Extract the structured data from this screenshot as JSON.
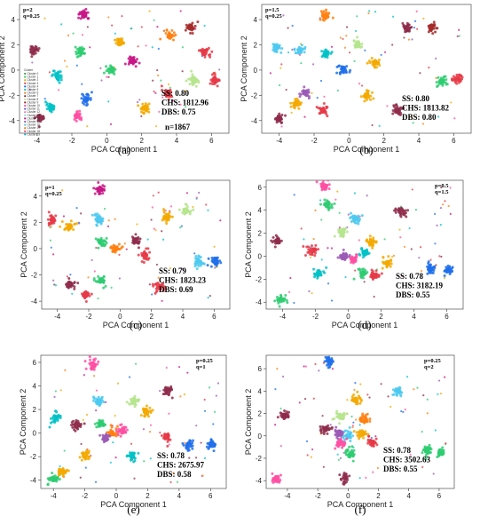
{
  "figure": {
    "cluster_colors": [
      "#4b9a4b",
      "#2ecc71",
      "#f4a900",
      "#e63946",
      "#1f6feb",
      "#00c2c7",
      "#ff7f0e",
      "#8e2b4a",
      "#b5e48c",
      "#a52a2a",
      "#ff4fa3",
      "#6a5acd",
      "#e377c2",
      "#7fdbda",
      "#c71585",
      "#9b59b6",
      "#4cc9f0",
      "#f77f00",
      "#ff3b6b",
      "#00bcd4"
    ],
    "scatter_colors": [
      "#e63946",
      "#f4a900",
      "#1f6feb",
      "#00c2c7",
      "#8e2b4a",
      "#2ecc71",
      "#ff4fa3",
      "#9b59b6",
      "#ff7f0e",
      "#c71585"
    ]
  },
  "chart_data": [
    {
      "panel_id": "a",
      "type": "scatter",
      "panel_label": "(a)",
      "params": [
        "p=2",
        "q=0.25"
      ],
      "metrics": [
        "SS: 0.80",
        "CHS: 1812.96",
        "DBS: 0.75"
      ],
      "note": "n=1867",
      "xlabel": "PCA Component 1",
      "ylabel": "PCA Component 2",
      "xlim": [
        -5,
        7
      ],
      "ylim": [
        -5,
        5.2
      ],
      "xticks": [
        -4,
        -2,
        0,
        2,
        4,
        6
      ],
      "yticks": [
        -4,
        -2,
        0,
        2,
        4
      ],
      "legend": {
        "title": "Cluster",
        "entries": [
          "Cluster 0",
          "Cluster 1",
          "Cluster 2",
          "Cluster 3",
          "Cluster 4",
          "Cluster 5",
          "Cluster 6",
          "Cluster 7",
          "Cluster 8",
          "Cluster 9",
          "Cluster 10",
          "Cluster 11",
          "Cluster 12",
          "Cluster 13",
          "Cluster 14",
          "Cluster 15",
          "Cluster 16",
          "Cluster 17",
          "Cluster 18",
          "Cluster 19"
        ]
      },
      "clusters": [
        {
          "x": -1.3,
          "y": 4.4,
          "color": "#c71585"
        },
        {
          "x": -4.2,
          "y": 1.6,
          "color": "#8e2b4a"
        },
        {
          "x": -1.5,
          "y": 1.5,
          "color": "#2ecc71"
        },
        {
          "x": 0.2,
          "y": 0.0,
          "color": "#2ecc71"
        },
        {
          "x": 0.8,
          "y": 2.2,
          "color": "#f4a900"
        },
        {
          "x": 3.6,
          "y": 2.7,
          "color": "#ff7f0e"
        },
        {
          "x": 4.8,
          "y": 3.4,
          "color": "#a52a2a"
        },
        {
          "x": 5.6,
          "y": 1.4,
          "color": "#e63946"
        },
        {
          "x": 5.0,
          "y": -0.8,
          "color": "#b5e48c"
        },
        {
          "x": 6.2,
          "y": -0.8,
          "color": "#e63946"
        },
        {
          "x": -1.2,
          "y": -2.3,
          "color": "#1f6feb"
        },
        {
          "x": -3.2,
          "y": -2.9,
          "color": "#00c2c7"
        },
        {
          "x": -3.8,
          "y": -3.8,
          "color": "#8e2b4a"
        },
        {
          "x": -1.7,
          "y": -3.6,
          "color": "#ff4fa3"
        },
        {
          "x": 2.2,
          "y": -3.0,
          "color": "#f4a900"
        },
        {
          "x": 3.5,
          "y": -1.8,
          "color": "#e63946"
        },
        {
          "x": 1.5,
          "y": 0.7,
          "color": "#c71585"
        },
        {
          "x": -2.8,
          "y": -0.5,
          "color": "#00c2c7"
        }
      ]
    },
    {
      "panel_id": "b",
      "type": "scatter",
      "panel_label": "(b)",
      "params": [
        "p=1.5",
        "q=0.25"
      ],
      "metrics": [
        "SS: 0.80",
        "CHS: 1813.82",
        "DBS: 0.80"
      ],
      "xlabel": "PCA Component 1",
      "ylabel": "PCA Component 2",
      "xlim": [
        -5,
        7
      ],
      "ylim": [
        -5,
        5.2
      ],
      "xticks": [
        -4,
        -2,
        0,
        2,
        4,
        6
      ],
      "yticks": [
        -4,
        -2,
        0,
        2,
        4
      ],
      "clusters": [
        {
          "x": -1.4,
          "y": 4.3,
          "color": "#ff7f0e"
        },
        {
          "x": -4.2,
          "y": 1.8,
          "color": "#4cc9f0"
        },
        {
          "x": -2.8,
          "y": 1.6,
          "color": "#4cc9f0"
        },
        {
          "x": -1.3,
          "y": 1.3,
          "color": "#00c2c7"
        },
        {
          "x": 0.5,
          "y": 2.0,
          "color": "#b5e48c"
        },
        {
          "x": 1.5,
          "y": 0.6,
          "color": "#f4a900"
        },
        {
          "x": -0.3,
          "y": 0.0,
          "color": "#1f6feb"
        },
        {
          "x": 3.3,
          "y": 3.3,
          "color": "#8e2b4a"
        },
        {
          "x": 4.7,
          "y": 3.4,
          "color": "#a52a2a"
        },
        {
          "x": 5.3,
          "y": -0.9,
          "color": "#2ecc71"
        },
        {
          "x": 6.2,
          "y": -0.7,
          "color": "#e63946"
        },
        {
          "x": -2.5,
          "y": -1.8,
          "color": "#9b59b6"
        },
        {
          "x": -3.0,
          "y": -2.6,
          "color": "#f4a900"
        },
        {
          "x": -4.0,
          "y": -3.8,
          "color": "#8e2b4a"
        },
        {
          "x": -1.5,
          "y": -3.2,
          "color": "#e63946"
        },
        {
          "x": 2.8,
          "y": -3.2,
          "color": "#8e2b4a"
        },
        {
          "x": 1.0,
          "y": -2.0,
          "color": "#f4a900"
        }
      ]
    },
    {
      "panel_id": "c",
      "type": "scatter",
      "panel_label": "(c)",
      "params": [
        "p=1",
        "q=0.25"
      ],
      "metrics": [
        "SS: 0.79",
        "CHS: 1823.23",
        "DBS: 0.69"
      ],
      "xlabel": "PCA Component 1",
      "ylabel": "PCA Component 2",
      "xlim": [
        -5,
        7
      ],
      "ylim": [
        -4.6,
        5.2
      ],
      "xticks": [
        -4,
        -2,
        0,
        2,
        4,
        6
      ],
      "yticks": [
        -4,
        -2,
        0,
        2,
        4
      ],
      "clusters": [
        {
          "x": -1.3,
          "y": 4.5,
          "color": "#c71585"
        },
        {
          "x": -4.3,
          "y": 2.2,
          "color": "#e63946"
        },
        {
          "x": -3.2,
          "y": 1.7,
          "color": "#f4a900"
        },
        {
          "x": -1.4,
          "y": 2.2,
          "color": "#4cc9f0"
        },
        {
          "x": 3.0,
          "y": 2.4,
          "color": "#f4a900"
        },
        {
          "x": 4.2,
          "y": 2.9,
          "color": "#b5e48c"
        },
        {
          "x": -1.2,
          "y": 0.5,
          "color": "#2ecc71"
        },
        {
          "x": -0.3,
          "y": 0.0,
          "color": "#ff7f0e"
        },
        {
          "x": 1.0,
          "y": 0.6,
          "color": "#8e2b4a"
        },
        {
          "x": 1.6,
          "y": -0.5,
          "color": "#e63946"
        },
        {
          "x": -1.2,
          "y": -2.4,
          "color": "#2ecc71"
        },
        {
          "x": -3.2,
          "y": -2.7,
          "color": "#8e2b4a"
        },
        {
          "x": -2.2,
          "y": -3.5,
          "color": "#e63946"
        },
        {
          "x": 2.5,
          "y": -2.9,
          "color": "#e63946"
        },
        {
          "x": 5.0,
          "y": -1.0,
          "color": "#4cc9f0"
        },
        {
          "x": 6.1,
          "y": -1.0,
          "color": "#1f6feb"
        }
      ]
    },
    {
      "panel_id": "d",
      "type": "scatter",
      "panel_label": "(d)",
      "params": [
        "p=0.5",
        "q=1.5"
      ],
      "metrics": [
        "SS: 0.78",
        "CHS: 3182.19",
        "DBS: 0.55"
      ],
      "xlabel": "PCA Component 1",
      "ylabel": "PCA Component 2",
      "xlim": [
        -5,
        7
      ],
      "ylim": [
        -4.6,
        6.6
      ],
      "xticks": [
        -4,
        -2,
        0,
        2,
        4,
        6
      ],
      "yticks": [
        -4,
        -2,
        0,
        2,
        4,
        6
      ],
      "clusters": [
        {
          "x": -1.5,
          "y": 6.1,
          "color": "#ff4fa3"
        },
        {
          "x": -1.3,
          "y": 4.5,
          "color": "#2ecc71"
        },
        {
          "x": 0.4,
          "y": 3.3,
          "color": "#4cc9f0"
        },
        {
          "x": 3.2,
          "y": 3.9,
          "color": "#8e2b4a"
        },
        {
          "x": -0.4,
          "y": 2.1,
          "color": "#b5e48c"
        },
        {
          "x": -4.3,
          "y": 1.3,
          "color": "#8e2b4a"
        },
        {
          "x": -2.2,
          "y": 0.5,
          "color": "#e63946"
        },
        {
          "x": 1.4,
          "y": 1.2,
          "color": "#f4a900"
        },
        {
          "x": -0.2,
          "y": 0.0,
          "color": "#9b59b6"
        },
        {
          "x": 0.3,
          "y": -0.3,
          "color": "#ff4fa3"
        },
        {
          "x": 1.0,
          "y": 0.3,
          "color": "#00c2c7"
        },
        {
          "x": 2.4,
          "y": -0.6,
          "color": "#f4a900"
        },
        {
          "x": -1.8,
          "y": -1.5,
          "color": "#00c2c7"
        },
        {
          "x": 0.9,
          "y": -1.5,
          "color": "#2ecc71"
        },
        {
          "x": 1.6,
          "y": -1.7,
          "color": "#e63946"
        },
        {
          "x": -4.1,
          "y": -3.8,
          "color": "#2ecc71"
        },
        {
          "x": 5.0,
          "y": -1.1,
          "color": "#1f6feb"
        },
        {
          "x": 6.1,
          "y": -1.2,
          "color": "#1f6feb"
        }
      ]
    },
    {
      "panel_id": "e",
      "type": "scatter",
      "panel_label": "(e)",
      "params": [
        "p=0.25",
        "q=1"
      ],
      "metrics": [
        "SS: 0.78",
        "CHS: 2675.97",
        "DBS: 0.58"
      ],
      "xlabel": "PCA Component 1",
      "ylabel": "PCA Component 2",
      "xlim": [
        -4.8,
        7
      ],
      "ylim": [
        -4.7,
        6.6
      ],
      "xticks": [
        -4,
        -2,
        0,
        2,
        4,
        6
      ],
      "yticks": [
        -4,
        -2,
        0,
        2,
        4,
        6
      ],
      "clusters": [
        {
          "x": -1.5,
          "y": 5.8,
          "color": "#ff4fa3"
        },
        {
          "x": 3.3,
          "y": 3.6,
          "color": "#8e2b4a"
        },
        {
          "x": -1.1,
          "y": 2.7,
          "color": "#4cc9f0"
        },
        {
          "x": 1.1,
          "y": 2.7,
          "color": "#b5e48c"
        },
        {
          "x": 1.9,
          "y": 1.8,
          "color": "#f4a900"
        },
        {
          "x": -3.9,
          "y": 1.3,
          "color": "#00c2c7"
        },
        {
          "x": -2.5,
          "y": 0.7,
          "color": "#8e2b4a"
        },
        {
          "x": -1.0,
          "y": 0.8,
          "color": "#2ecc71"
        },
        {
          "x": -0.3,
          "y": 0.0,
          "color": "#ff7f0e"
        },
        {
          "x": -0.7,
          "y": -0.4,
          "color": "#9b59b6"
        },
        {
          "x": 0.4,
          "y": 0.2,
          "color": "#ff4fa3"
        },
        {
          "x": 3.2,
          "y": -0.3,
          "color": "#e63946"
        },
        {
          "x": -2.0,
          "y": -1.9,
          "color": "#f4a900"
        },
        {
          "x": 1.0,
          "y": -1.9,
          "color": "#00c2c7"
        },
        {
          "x": -4.0,
          "y": -3.9,
          "color": "#2ecc71"
        },
        {
          "x": -3.4,
          "y": -3.3,
          "color": "#f4a900"
        },
        {
          "x": 4.6,
          "y": -1.0,
          "color": "#1f6feb"
        },
        {
          "x": 6.1,
          "y": -1.0,
          "color": "#1f6feb"
        }
      ]
    },
    {
      "panel_id": "f",
      "type": "scatter",
      "panel_label": "(f)",
      "params": [
        "p=0.25",
        "q=2"
      ],
      "metrics": [
        "SS: 0.78",
        "CHS: 3502.63",
        "DBS: 0.55"
      ],
      "xlabel": "PCA Component 1",
      "ylabel": "PCA Component 2",
      "xlim": [
        -5.4,
        7
      ],
      "ylim": [
        -4.7,
        7.2
      ],
      "xticks": [
        -4,
        -2,
        0,
        2,
        4,
        6
      ],
      "yticks": [
        -4,
        -2,
        0,
        2,
        4,
        6
      ],
      "clusters": [
        {
          "x": -1.2,
          "y": 6.6,
          "color": "#1f6feb"
        },
        {
          "x": 3.3,
          "y": 4.0,
          "color": "#4cc9f0"
        },
        {
          "x": 0.5,
          "y": 3.2,
          "color": "#f4a900"
        },
        {
          "x": -0.5,
          "y": 1.7,
          "color": "#b5e48c"
        },
        {
          "x": 1.0,
          "y": 1.5,
          "color": "#ff7f0e"
        },
        {
          "x": -4.2,
          "y": 1.8,
          "color": "#8e2b4a"
        },
        {
          "x": -1.5,
          "y": 0.6,
          "color": "#8e2b4a"
        },
        {
          "x": -0.6,
          "y": 0.2,
          "color": "#9b59b6"
        },
        {
          "x": 0.0,
          "y": 0.0,
          "color": "#4cc9f0"
        },
        {
          "x": -0.5,
          "y": -0.6,
          "color": "#ff4fa3"
        },
        {
          "x": 0.9,
          "y": 0.2,
          "color": "#f4a900"
        },
        {
          "x": 1.6,
          "y": -0.6,
          "color": "#e63946"
        },
        {
          "x": 0.2,
          "y": -1.6,
          "color": "#2ecc71"
        },
        {
          "x": -0.2,
          "y": -3.7,
          "color": "#8e2b4a"
        },
        {
          "x": -4.7,
          "y": -3.8,
          "color": "#ff4fa3"
        },
        {
          "x": 5.2,
          "y": -1.3,
          "color": "#2ecc71"
        },
        {
          "x": 6.1,
          "y": -1.4,
          "color": "#2ecc71"
        }
      ]
    }
  ]
}
